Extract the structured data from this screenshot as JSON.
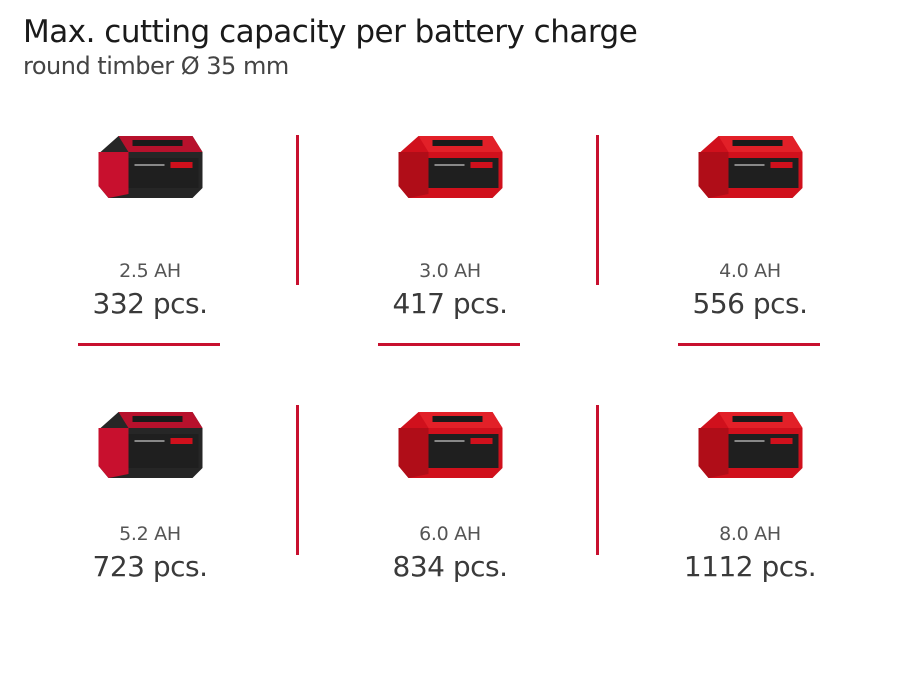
{
  "header": {
    "title": "Max. cutting capacity per battery charge",
    "subtitle": "round timber Ø 35 mm"
  },
  "colors": {
    "accent": "#c8102e",
    "battery_red": "#d0101c",
    "battery_black": "#262626"
  },
  "batteries": [
    {
      "capacity": "2.5 AH",
      "result": "332 pcs.",
      "icon": "battery-pack-icon",
      "style": "black"
    },
    {
      "capacity": "3.0 AH",
      "result": "417 pcs.",
      "icon": "battery-pack-icon",
      "style": "red"
    },
    {
      "capacity": "4.0 AH",
      "result": "556 pcs.",
      "icon": "battery-pack-icon",
      "style": "red"
    },
    {
      "capacity": "5.2 AH",
      "result": "723 pcs.",
      "icon": "battery-pack-icon",
      "style": "black-large"
    },
    {
      "capacity": "6.0 AH",
      "result": "834 pcs.",
      "icon": "battery-pack-icon",
      "style": "red-large"
    },
    {
      "capacity": "8.0 AH",
      "result": "1112 pcs.",
      "icon": "battery-pack-icon",
      "style": "red-large"
    }
  ]
}
